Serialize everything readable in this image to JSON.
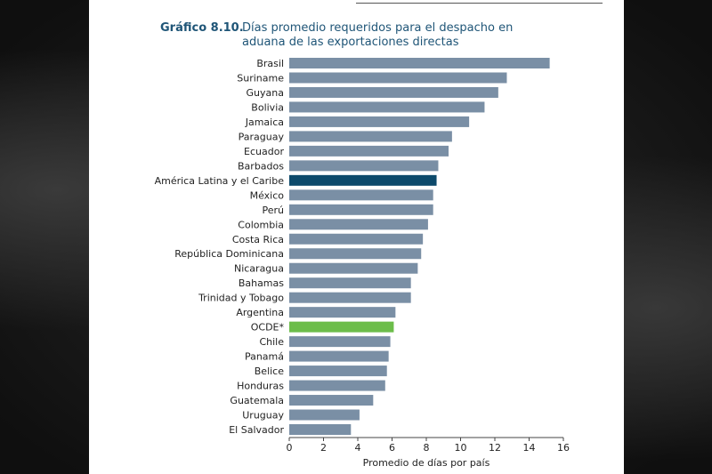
{
  "figure": {
    "label": "Gráfico 8.10.",
    "title": "Días promedio requeridos para el despacho en aduana de las exportaciones directas"
  },
  "colors": {
    "default_bar": "#7a8fa5",
    "highlight_region": "#0d4a6b",
    "highlight_ocde": "#6cbd4a",
    "title": "#1f5577"
  },
  "chart_data": {
    "type": "bar",
    "orientation": "horizontal",
    "title": "Días promedio requeridos para el despacho en aduana de las exportaciones directas",
    "xlabel": "Promedio de días por país",
    "ylabel": "",
    "xlim": [
      0,
      16
    ],
    "xticks": [
      0,
      2,
      4,
      6,
      8,
      10,
      12,
      14,
      16
    ],
    "categories": [
      "Brasil",
      "Suriname",
      "Guyana",
      "Bolivia",
      "Jamaica",
      "Paraguay",
      "Ecuador",
      "Barbados",
      "América Latina y el Caribe",
      "México",
      "Perú",
      "Colombia",
      "Costa Rica",
      "República Dominicana",
      "Nicaragua",
      "Bahamas",
      "Trinidad y Tobago",
      "Argentina",
      "OCDE*",
      "Chile",
      "Panamá",
      "Belice",
      "Honduras",
      "Guatemala",
      "Uruguay",
      "El Salvador"
    ],
    "values": [
      15.2,
      12.7,
      12.2,
      11.4,
      10.5,
      9.5,
      9.3,
      8.7,
      8.6,
      8.4,
      8.4,
      8.1,
      7.8,
      7.7,
      7.5,
      7.1,
      7.1,
      6.2,
      6.1,
      5.9,
      5.8,
      5.7,
      5.6,
      4.9,
      4.1,
      3.6
    ],
    "highlights": {
      "América Latina y el Caribe": "highlight_region",
      "OCDE*": "highlight_ocde"
    },
    "grid": false
  }
}
